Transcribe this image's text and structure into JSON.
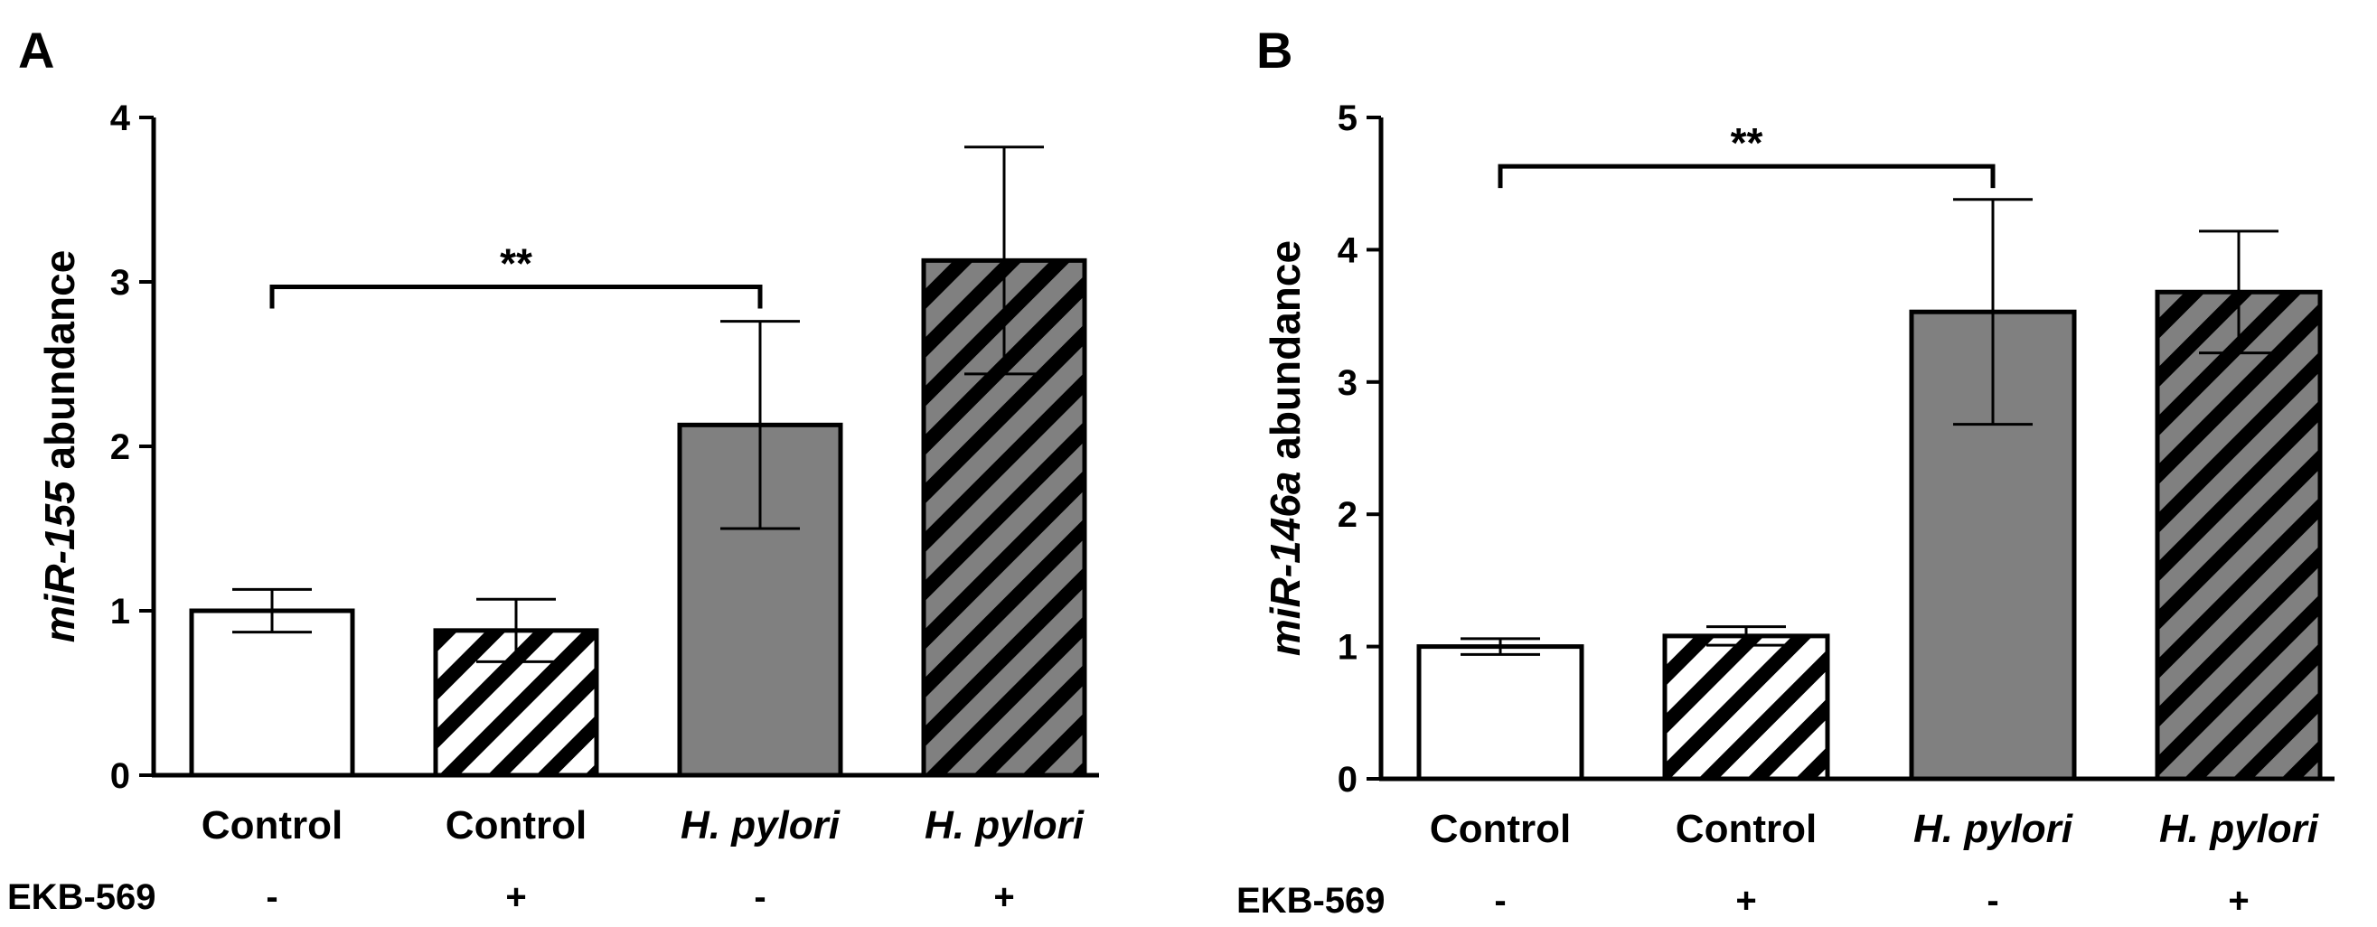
{
  "chart_data": [
    {
      "type": "bar",
      "panel_label": "A",
      "ylabel_gene": "miR-155",
      "ylabel_suffix": " abundance",
      "ylim": [
        0,
        4
      ],
      "yticks": [
        0,
        1,
        2,
        3,
        4
      ],
      "categories": [
        "Control",
        "Control",
        "H. pylori",
        "H. pylori"
      ],
      "italic_categories": [
        false,
        false,
        true,
        true
      ],
      "treatment_label": "EKB-569",
      "treatment": [
        "-",
        "+",
        "-",
        "+"
      ],
      "values": [
        1.0,
        0.88,
        2.13,
        3.13
      ],
      "errors": [
        0.13,
        0.19,
        0.63,
        0.69
      ],
      "fills": [
        "open",
        "hatched-white",
        "grey",
        "hatched-grey"
      ],
      "significance": {
        "from": 0,
        "to": 2,
        "label": "**",
        "y": 2.97
      }
    },
    {
      "type": "bar",
      "panel_label": "B",
      "ylabel_gene": "miR-146a",
      "ylabel_suffix": " abundance",
      "ylim": [
        0,
        5
      ],
      "yticks": [
        0,
        1,
        2,
        3,
        4,
        5
      ],
      "categories": [
        "Control",
        "Control",
        "H. pylori",
        "H. pylori"
      ],
      "italic_categories": [
        false,
        false,
        true,
        true
      ],
      "treatment_label": "EKB-569",
      "treatment": [
        "-",
        "+",
        "-",
        "+"
      ],
      "values": [
        1.0,
        1.08,
        3.53,
        3.68
      ],
      "errors": [
        0.06,
        0.07,
        0.85,
        0.46
      ],
      "fills": [
        "open",
        "hatched-white",
        "grey",
        "hatched-grey"
      ],
      "significance": {
        "from": 0,
        "to": 2,
        "label": "**",
        "y": 4.63
      }
    }
  ],
  "colors": {
    "grey_fill": "#808080",
    "stroke": "#000000",
    "white": "#ffffff"
  }
}
